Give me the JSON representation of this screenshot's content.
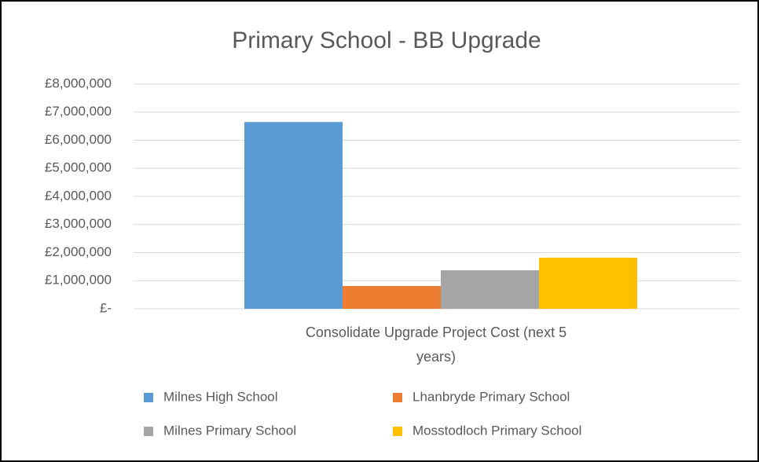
{
  "chart_data": {
    "type": "bar",
    "title": "Primary School - BB Upgrade",
    "categories": [
      "Consolidate Upgrade Project Cost (next 5 years)"
    ],
    "series": [
      {
        "name": "Milnes High School",
        "color": "#5b9bd5",
        "values": [
          6650000
        ]
      },
      {
        "name": "Lhanbryde Primary School",
        "color": "#ed7d31",
        "values": [
          810000
        ]
      },
      {
        "name": "Milnes Primary School",
        "color": "#a5a5a5",
        "values": [
          1370000
        ]
      },
      {
        "name": "Mosstodloch Primary School",
        "color": "#ffc000",
        "values": [
          1820000
        ]
      }
    ],
    "ylim": [
      0,
      8000000
    ],
    "yticks": [
      {
        "value": 0,
        "label": "£-"
      },
      {
        "value": 1000000,
        "label": "£1,000,000"
      },
      {
        "value": 2000000,
        "label": "£2,000,000"
      },
      {
        "value": 3000000,
        "label": "£3,000,000"
      },
      {
        "value": 4000000,
        "label": "£4,000,000"
      },
      {
        "value": 5000000,
        "label": "£5,000,000"
      },
      {
        "value": 6000000,
        "label": "£6,000,000"
      },
      {
        "value": 7000000,
        "label": "£7,000,000"
      },
      {
        "value": 8000000,
        "label": "£8,000,000"
      }
    ],
    "grid": true,
    "legend": "bottom"
  }
}
